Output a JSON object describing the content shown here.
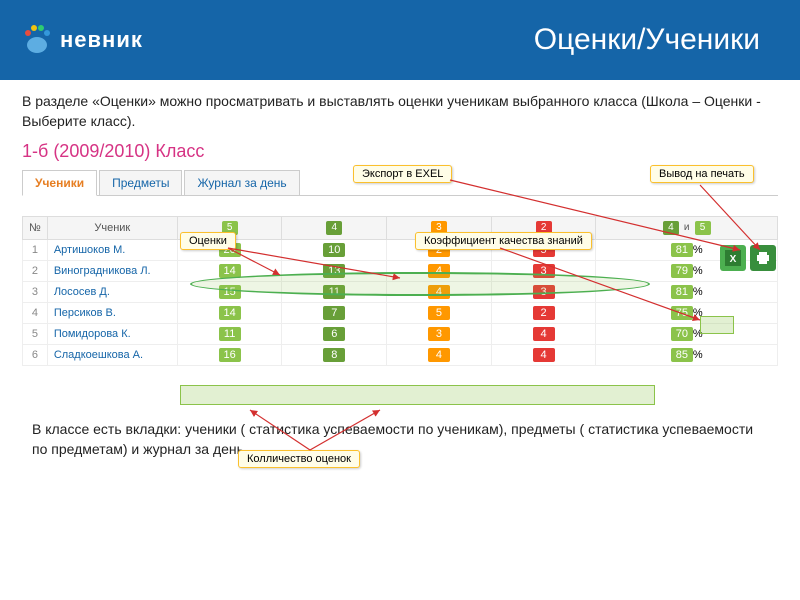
{
  "header": {
    "logo_text": "невник",
    "title": "Оценки/Ученики"
  },
  "desc_top": "В разделе «Оценки» можно просматривать и выставлять оценки ученикам выбранного класса (Школа – Оценки -  Выберите класс).",
  "class_title": "1-б (2009/2010) Класс",
  "tabs": [
    {
      "label": "Ученики",
      "active": true
    },
    {
      "label": "Предметы",
      "active": false
    },
    {
      "label": "Журнал за день",
      "active": false
    }
  ],
  "callouts": {
    "export": "Экспорт в EXEL",
    "print": "Вывод на печать",
    "grades": "Оценки",
    "quality": "Коэффициент качества знаний",
    "count": "Колличество оценок"
  },
  "table": {
    "head_num": "№",
    "head_name": "Ученик",
    "grade_cols": [
      "5",
      "4",
      "3",
      "2"
    ],
    "pct_suffix": "%",
    "pct_sep": "и",
    "rows": [
      {
        "n": "1",
        "name": "Артишоков М.",
        "v": [
          "20",
          "10",
          "2",
          "5"
        ],
        "pct": "81"
      },
      {
        "n": "2",
        "name": "Виноградникова Л.",
        "v": [
          "14",
          "13",
          "4",
          "3"
        ],
        "pct": "79"
      },
      {
        "n": "3",
        "name": "Лососев Д.",
        "v": [
          "15",
          "11",
          "4",
          "3"
        ],
        "pct": "81"
      },
      {
        "n": "4",
        "name": "Персиков В.",
        "v": [
          "14",
          "7",
          "5",
          "2"
        ],
        "pct": "75"
      },
      {
        "n": "5",
        "name": "Помидорова К.",
        "v": [
          "11",
          "6",
          "3",
          "4"
        ],
        "pct": "70"
      },
      {
        "n": "6",
        "name": "Сладкоешкова А.",
        "v": [
          "16",
          "8",
          "4",
          "4"
        ],
        "pct": "85"
      }
    ]
  },
  "desc_bottom": "В классе есть вкладки: ученики ( статистика успеваемости по ученикам), предметы ( статистика успеваемости по предметам) и журнал за день.",
  "colors": {
    "header_bg": "#1565a8",
    "accent_pink": "#d63384",
    "badge5": "#8bc34a",
    "badge4": "#689f38",
    "badge3": "#ff9800",
    "badge2": "#e53935"
  }
}
